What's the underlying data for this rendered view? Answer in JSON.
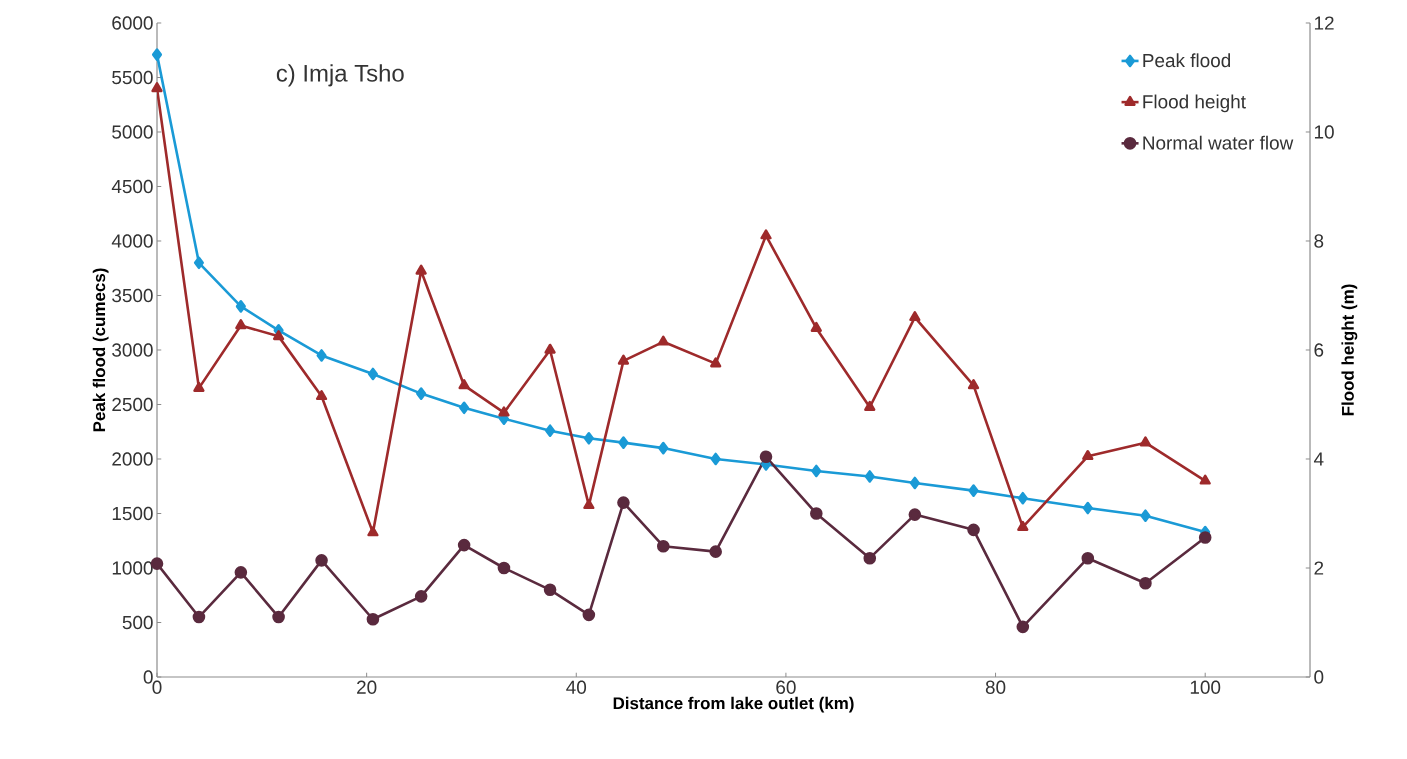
{
  "chart_data": {
    "type": "line",
    "title": "c) Imja Tsho",
    "xlabel": "Distance from lake outlet (km)",
    "ylabel": "Peak flood (cumecs)",
    "y2label": "Flood height (m)",
    "x": [
      0,
      4,
      8,
      11.6,
      15.7,
      20.6,
      25.2,
      29.3,
      33.1,
      37.5,
      41.2,
      44.5,
      48.3,
      53.3,
      58.1,
      62.9,
      68,
      72.3,
      77.9,
      82.6,
      88.8,
      94.3,
      100
    ],
    "series": [
      {
        "name": "Peak flood",
        "color": "#1a9ad6",
        "marker": "diamond",
        "values": [
          5710,
          3800,
          3400,
          3180,
          2950,
          2780,
          2600,
          2470,
          2370,
          2260,
          2190,
          2150,
          2100,
          2000,
          1950,
          1890,
          1840,
          1780,
          1710,
          1640,
          1550,
          1480,
          1330
        ]
      },
      {
        "name": "Flood height",
        "color": "#9e2a2b",
        "marker": "triangle",
        "axis": "y2",
        "values": [
          10.8,
          5.3,
          6.45,
          6.25,
          5.15,
          2.65,
          7.45,
          5.35,
          4.85,
          6.0,
          3.15,
          5.8,
          6.15,
          5.75,
          8.1,
          6.4,
          4.95,
          6.6,
          5.35,
          2.75,
          4.05,
          4.3,
          3.6
        ]
      },
      {
        "name": "Normal water flow",
        "color": "#5a2a3e",
        "marker": "circle",
        "values": [
          1040,
          550,
          960,
          550,
          1070,
          530,
          740,
          1210,
          1000,
          800,
          570,
          1600,
          1200,
          1150,
          2020,
          1500,
          1090,
          1490,
          1350,
          460,
          1090,
          860,
          1280
        ]
      }
    ],
    "xlim": [
      0,
      110
    ],
    "xticks": [
      0,
      20,
      40,
      60,
      80,
      100
    ],
    "ylim": [
      0,
      6000
    ],
    "yticks": [
      0,
      500,
      1000,
      1500,
      2000,
      2500,
      3000,
      3500,
      4000,
      4500,
      5000,
      5500,
      6000
    ],
    "y2lim": [
      0,
      12
    ],
    "y2ticks": [
      0,
      2,
      4,
      6,
      8,
      10,
      12
    ],
    "legend": "top right",
    "line_style": "solid",
    "grid": false
  }
}
